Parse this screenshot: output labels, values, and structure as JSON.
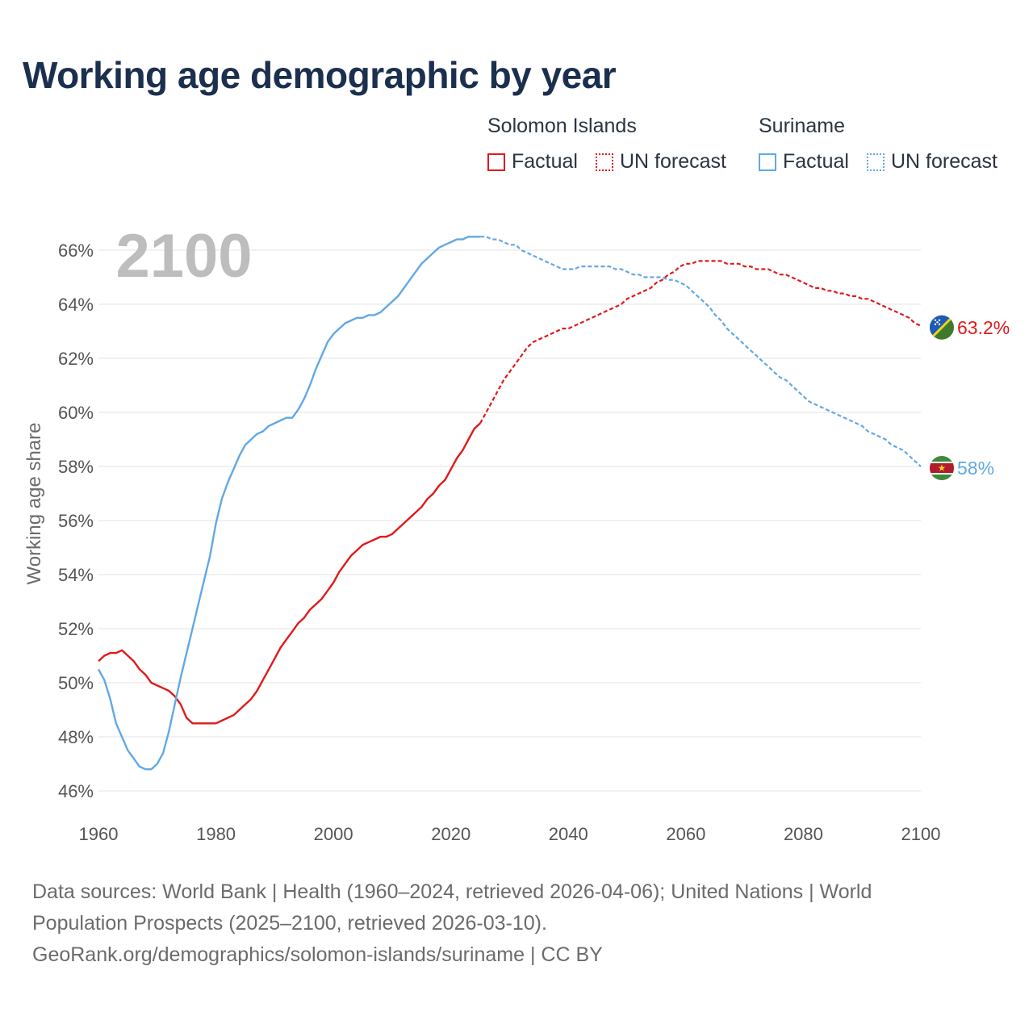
{
  "title": "Working age demographic by year",
  "legend": {
    "groups": [
      {
        "name": "Solomon Islands",
        "color": "#e01a1a",
        "factual_label": "Factual",
        "forecast_label": "UN forecast"
      },
      {
        "name": "Suriname",
        "color": "#62a8e6",
        "factual_label": "Factual",
        "forecast_label": "UN forecast"
      }
    ]
  },
  "year_label": "2100",
  "footer": {
    "line1": "Data sources: World Bank | Health (1960–2024, retrieved 2026-04-06); United Nations | World",
    "line2": "Population Prospects (2025–2100, retrieved 2026-03-10).",
    "line3": "GeoRank.org/demographics/solomon-islands/suriname | CC BY"
  },
  "chart_data": {
    "type": "line",
    "title": "Working age demographic by year",
    "xlabel": "",
    "ylabel": "Working age share",
    "xlim": [
      1960,
      2100
    ],
    "ylim": [
      45.2,
      66.8
    ],
    "xticks": [
      "1960",
      "1980",
      "2000",
      "2020",
      "2040",
      "2060",
      "2080",
      "2100"
    ],
    "yticks": [
      "46%",
      "48%",
      "50%",
      "52%",
      "54%",
      "56%",
      "58%",
      "60%",
      "62%",
      "64%",
      "66%"
    ],
    "forecast_start": 2025,
    "series": [
      {
        "name": "Solomon Islands",
        "color": "#e01a1a",
        "end_label": "63.2%",
        "flag": "solomon-islands-flag-icon",
        "points": [
          [
            1960,
            50.8
          ],
          [
            1961,
            51.0
          ],
          [
            1962,
            51.1
          ],
          [
            1963,
            51.1
          ],
          [
            1964,
            51.2
          ],
          [
            1965,
            51.0
          ],
          [
            1966,
            50.8
          ],
          [
            1967,
            50.5
          ],
          [
            1968,
            50.3
          ],
          [
            1969,
            50.0
          ],
          [
            1970,
            49.9
          ],
          [
            1971,
            49.8
          ],
          [
            1972,
            49.7
          ],
          [
            1973,
            49.5
          ],
          [
            1974,
            49.2
          ],
          [
            1975,
            48.7
          ],
          [
            1976,
            48.5
          ],
          [
            1977,
            48.5
          ],
          [
            1978,
            48.5
          ],
          [
            1979,
            48.5
          ],
          [
            1980,
            48.5
          ],
          [
            1981,
            48.6
          ],
          [
            1982,
            48.7
          ],
          [
            1983,
            48.8
          ],
          [
            1984,
            49.0
          ],
          [
            1985,
            49.2
          ],
          [
            1986,
            49.4
          ],
          [
            1987,
            49.7
          ],
          [
            1988,
            50.1
          ],
          [
            1989,
            50.5
          ],
          [
            1990,
            50.9
          ],
          [
            1991,
            51.3
          ],
          [
            1992,
            51.6
          ],
          [
            1993,
            51.9
          ],
          [
            1994,
            52.2
          ],
          [
            1995,
            52.4
          ],
          [
            1996,
            52.7
          ],
          [
            1997,
            52.9
          ],
          [
            1998,
            53.1
          ],
          [
            1999,
            53.4
          ],
          [
            2000,
            53.7
          ],
          [
            2001,
            54.1
          ],
          [
            2002,
            54.4
          ],
          [
            2003,
            54.7
          ],
          [
            2004,
            54.9
          ],
          [
            2005,
            55.1
          ],
          [
            2006,
            55.2
          ],
          [
            2007,
            55.3
          ],
          [
            2008,
            55.4
          ],
          [
            2009,
            55.4
          ],
          [
            2010,
            55.5
          ],
          [
            2011,
            55.7
          ],
          [
            2012,
            55.9
          ],
          [
            2013,
            56.1
          ],
          [
            2014,
            56.3
          ],
          [
            2015,
            56.5
          ],
          [
            2016,
            56.8
          ],
          [
            2017,
            57.0
          ],
          [
            2018,
            57.3
          ],
          [
            2019,
            57.5
          ],
          [
            2020,
            57.9
          ],
          [
            2021,
            58.3
          ],
          [
            2022,
            58.6
          ],
          [
            2023,
            59.0
          ],
          [
            2024,
            59.4
          ],
          [
            2025,
            59.6
          ],
          [
            2026,
            60.0
          ],
          [
            2027,
            60.4
          ],
          [
            2028,
            60.8
          ],
          [
            2029,
            61.2
          ],
          [
            2030,
            61.5
          ],
          [
            2031,
            61.8
          ],
          [
            2032,
            62.1
          ],
          [
            2033,
            62.4
          ],
          [
            2034,
            62.6
          ],
          [
            2035,
            62.7
          ],
          [
            2036,
            62.8
          ],
          [
            2037,
            62.9
          ],
          [
            2038,
            63.0
          ],
          [
            2039,
            63.1
          ],
          [
            2040,
            63.1
          ],
          [
            2041,
            63.2
          ],
          [
            2042,
            63.3
          ],
          [
            2043,
            63.4
          ],
          [
            2044,
            63.5
          ],
          [
            2045,
            63.6
          ],
          [
            2046,
            63.7
          ],
          [
            2047,
            63.8
          ],
          [
            2048,
            63.9
          ],
          [
            2049,
            64.0
          ],
          [
            2050,
            64.2
          ],
          [
            2051,
            64.3
          ],
          [
            2052,
            64.4
          ],
          [
            2053,
            64.5
          ],
          [
            2054,
            64.6
          ],
          [
            2055,
            64.8
          ],
          [
            2056,
            64.9
          ],
          [
            2057,
            65.1
          ],
          [
            2058,
            65.2
          ],
          [
            2059,
            65.4
          ],
          [
            2060,
            65.5
          ],
          [
            2061,
            65.5
          ],
          [
            2062,
            65.6
          ],
          [
            2063,
            65.6
          ],
          [
            2064,
            65.6
          ],
          [
            2065,
            65.6
          ],
          [
            2066,
            65.6
          ],
          [
            2067,
            65.5
          ],
          [
            2068,
            65.5
          ],
          [
            2069,
            65.5
          ],
          [
            2070,
            65.4
          ],
          [
            2071,
            65.4
          ],
          [
            2072,
            65.3
          ],
          [
            2073,
            65.3
          ],
          [
            2074,
            65.3
          ],
          [
            2075,
            65.2
          ],
          [
            2076,
            65.1
          ],
          [
            2077,
            65.1
          ],
          [
            2078,
            65.0
          ],
          [
            2079,
            64.9
          ],
          [
            2080,
            64.8
          ],
          [
            2081,
            64.7
          ],
          [
            2082,
            64.6
          ],
          [
            2083,
            64.6
          ],
          [
            2084,
            64.5
          ],
          [
            2085,
            64.5
          ],
          [
            2086,
            64.4
          ],
          [
            2087,
            64.4
          ],
          [
            2088,
            64.3
          ],
          [
            2089,
            64.3
          ],
          [
            2090,
            64.2
          ],
          [
            2091,
            64.2
          ],
          [
            2092,
            64.1
          ],
          [
            2093,
            64.0
          ],
          [
            2094,
            63.9
          ],
          [
            2095,
            63.8
          ],
          [
            2096,
            63.7
          ],
          [
            2097,
            63.6
          ],
          [
            2098,
            63.5
          ],
          [
            2099,
            63.3
          ],
          [
            2100,
            63.2
          ]
        ]
      },
      {
        "name": "Suriname",
        "color": "#62a8e6",
        "end_label": "58%",
        "flag": "suriname-flag-icon",
        "points": [
          [
            1960,
            50.5
          ],
          [
            1961,
            50.1
          ],
          [
            1962,
            49.4
          ],
          [
            1963,
            48.5
          ],
          [
            1964,
            48.0
          ],
          [
            1965,
            47.5
          ],
          [
            1966,
            47.2
          ],
          [
            1967,
            46.9
          ],
          [
            1968,
            46.8
          ],
          [
            1969,
            46.8
          ],
          [
            1970,
            47.0
          ],
          [
            1971,
            47.4
          ],
          [
            1972,
            48.2
          ],
          [
            1973,
            49.2
          ],
          [
            1974,
            50.2
          ],
          [
            1975,
            51.1
          ],
          [
            1976,
            52.0
          ],
          [
            1977,
            52.9
          ],
          [
            1978,
            53.8
          ],
          [
            1979,
            54.7
          ],
          [
            1980,
            55.9
          ],
          [
            1981,
            56.8
          ],
          [
            1982,
            57.4
          ],
          [
            1983,
            57.9
          ],
          [
            1984,
            58.4
          ],
          [
            1985,
            58.8
          ],
          [
            1986,
            59.0
          ],
          [
            1987,
            59.2
          ],
          [
            1988,
            59.3
          ],
          [
            1989,
            59.5
          ],
          [
            1990,
            59.6
          ],
          [
            1991,
            59.7
          ],
          [
            1992,
            59.8
          ],
          [
            1993,
            59.8
          ],
          [
            1994,
            60.1
          ],
          [
            1995,
            60.5
          ],
          [
            1996,
            61.0
          ],
          [
            1997,
            61.6
          ],
          [
            1998,
            62.1
          ],
          [
            1999,
            62.6
          ],
          [
            2000,
            62.9
          ],
          [
            2001,
            63.1
          ],
          [
            2002,
            63.3
          ],
          [
            2003,
            63.4
          ],
          [
            2004,
            63.5
          ],
          [
            2005,
            63.5
          ],
          [
            2006,
            63.6
          ],
          [
            2007,
            63.6
          ],
          [
            2008,
            63.7
          ],
          [
            2009,
            63.9
          ],
          [
            2010,
            64.1
          ],
          [
            2011,
            64.3
          ],
          [
            2012,
            64.6
          ],
          [
            2013,
            64.9
          ],
          [
            2014,
            65.2
          ],
          [
            2015,
            65.5
          ],
          [
            2016,
            65.7
          ],
          [
            2017,
            65.9
          ],
          [
            2018,
            66.1
          ],
          [
            2019,
            66.2
          ],
          [
            2020,
            66.3
          ],
          [
            2021,
            66.4
          ],
          [
            2022,
            66.4
          ],
          [
            2023,
            66.5
          ],
          [
            2024,
            66.5
          ],
          [
            2025,
            66.5
          ],
          [
            2026,
            66.5
          ],
          [
            2027,
            66.4
          ],
          [
            2028,
            66.4
          ],
          [
            2029,
            66.3
          ],
          [
            2030,
            66.2
          ],
          [
            2031,
            66.2
          ],
          [
            2032,
            66.0
          ],
          [
            2033,
            65.9
          ],
          [
            2034,
            65.8
          ],
          [
            2035,
            65.7
          ],
          [
            2036,
            65.6
          ],
          [
            2037,
            65.5
          ],
          [
            2038,
            65.4
          ],
          [
            2039,
            65.3
          ],
          [
            2040,
            65.3
          ],
          [
            2041,
            65.3
          ],
          [
            2042,
            65.4
          ],
          [
            2043,
            65.4
          ],
          [
            2044,
            65.4
          ],
          [
            2045,
            65.4
          ],
          [
            2046,
            65.4
          ],
          [
            2047,
            65.4
          ],
          [
            2048,
            65.3
          ],
          [
            2049,
            65.3
          ],
          [
            2050,
            65.2
          ],
          [
            2051,
            65.1
          ],
          [
            2052,
            65.1
          ],
          [
            2053,
            65.0
          ],
          [
            2054,
            65.0
          ],
          [
            2055,
            65.0
          ],
          [
            2056,
            65.0
          ],
          [
            2057,
            64.9
          ],
          [
            2058,
            64.9
          ],
          [
            2059,
            64.8
          ],
          [
            2060,
            64.7
          ],
          [
            2061,
            64.5
          ],
          [
            2062,
            64.3
          ],
          [
            2063,
            64.1
          ],
          [
            2064,
            63.9
          ],
          [
            2065,
            63.6
          ],
          [
            2066,
            63.4
          ],
          [
            2067,
            63.1
          ],
          [
            2068,
            62.9
          ],
          [
            2069,
            62.7
          ],
          [
            2070,
            62.5
          ],
          [
            2071,
            62.3
          ],
          [
            2072,
            62.1
          ],
          [
            2073,
            61.9
          ],
          [
            2074,
            61.7
          ],
          [
            2075,
            61.5
          ],
          [
            2076,
            61.3
          ],
          [
            2077,
            61.2
          ],
          [
            2078,
            61.0
          ],
          [
            2079,
            60.8
          ],
          [
            2080,
            60.6
          ],
          [
            2081,
            60.4
          ],
          [
            2082,
            60.3
          ],
          [
            2083,
            60.2
          ],
          [
            2084,
            60.1
          ],
          [
            2085,
            60.0
          ],
          [
            2086,
            59.9
          ],
          [
            2087,
            59.8
          ],
          [
            2088,
            59.7
          ],
          [
            2089,
            59.6
          ],
          [
            2090,
            59.5
          ],
          [
            2091,
            59.3
          ],
          [
            2092,
            59.2
          ],
          [
            2093,
            59.1
          ],
          [
            2094,
            59.0
          ],
          [
            2095,
            58.8
          ],
          [
            2096,
            58.7
          ],
          [
            2097,
            58.6
          ],
          [
            2098,
            58.4
          ],
          [
            2099,
            58.2
          ],
          [
            2100,
            58.0
          ]
        ]
      }
    ]
  }
}
